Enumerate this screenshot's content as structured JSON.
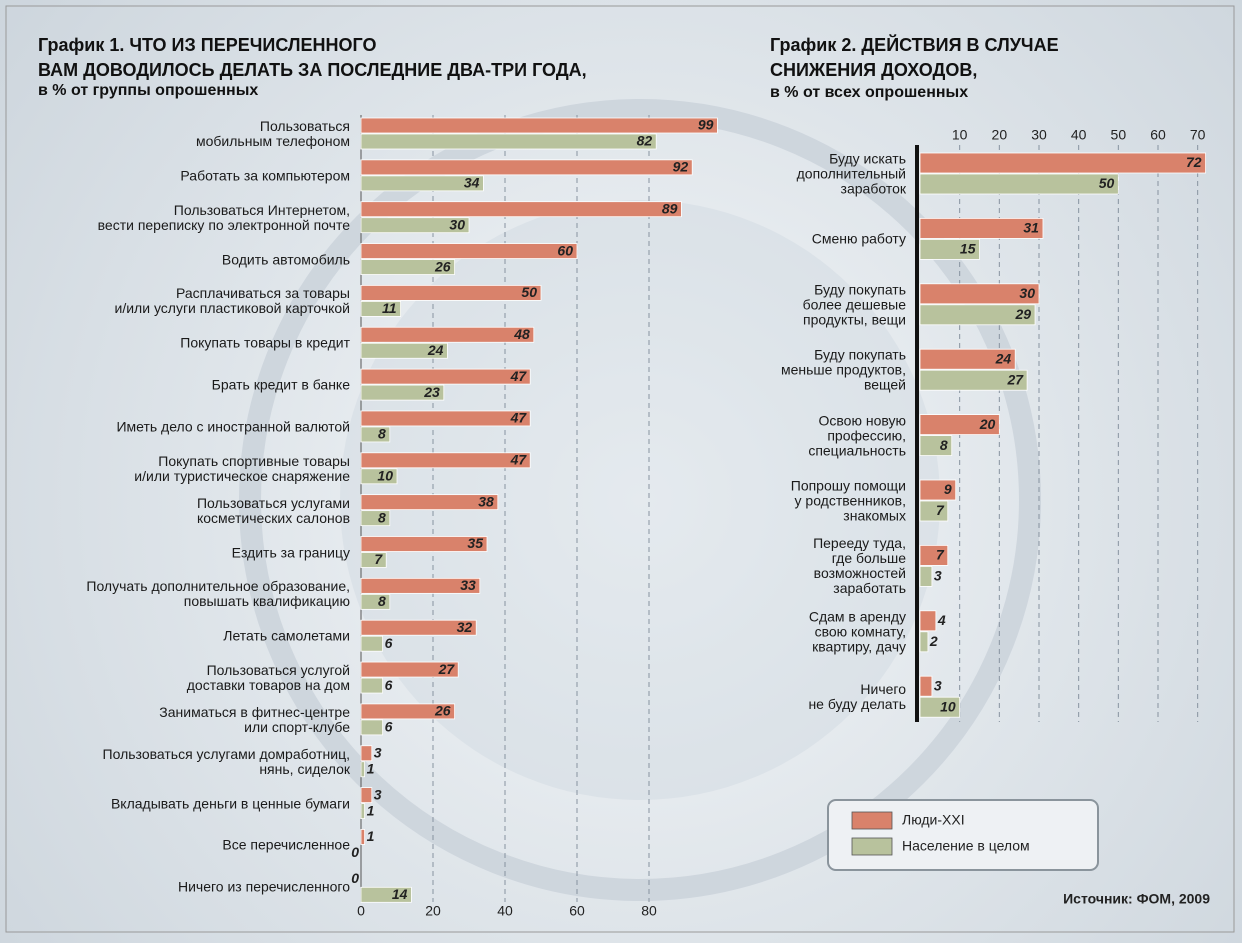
{
  "chart_data": [
    {
      "type": "bar",
      "orientation": "horizontal",
      "title": "График 1. ЧТО ИЗ ПЕРЕЧИСЛЕННОГО\nВАМ ДОВОДИЛОСЬ ДЕЛАТЬ ЗА ПОСЛЕДНИЕ ДВА-ТРИ ГОДА,",
      "subtitle": "в % от группы опрошенных",
      "categories": [
        "Пользоваться\nмобильным телефоном",
        "Работать за компьютером",
        "Пользоваться Интернетом,\nвести переписку по электронной почте",
        "Водить автомобиль",
        "Расплачиваться за товары\nи/или услуги пластиковой карточкой",
        "Покупать товары в кредит",
        "Брать кредит в банке",
        "Иметь дело с иностранной валютой",
        "Покупать спортивные товары\nи/или туристическое снаряжение",
        "Пользоваться услугами\nкосметических салонов",
        "Ездить за границу",
        "Получать дополнительное образование,\nповышать квалификацию",
        "Летать самолетами",
        "Пользоваться услугой\nдоставки товаров на дом",
        "Заниматься в фитнес-центре\nили спорт-клубе",
        "Пользоваться услугами домработниц,\nнянь, сиделок",
        "Вкладывать деньги в ценные бумаги",
        "Все перечисленное",
        "Ничего из перечисленного"
      ],
      "series": [
        {
          "name": "Люди-XXI",
          "color": "#d9826b",
          "values": [
            99,
            92,
            89,
            60,
            50,
            48,
            47,
            47,
            47,
            38,
            35,
            33,
            32,
            27,
            26,
            3,
            3,
            1,
            0
          ]
        },
        {
          "name": "Население в целом",
          "color": "#b8c29d",
          "values": [
            82,
            34,
            30,
            26,
            11,
            24,
            23,
            8,
            10,
            8,
            7,
            8,
            6,
            6,
            6,
            1,
            1,
            0,
            14
          ]
        }
      ],
      "xlim": [
        0,
        100
      ],
      "xticks": [
        0,
        20,
        40,
        60,
        80
      ],
      "grid": true
    },
    {
      "type": "bar",
      "orientation": "horizontal",
      "title": "График 2. ДЕЙСТВИЯ В СЛУЧАЕ\nСНИЖЕНИЯ ДОХОДОВ,",
      "subtitle": "в % от всех опрошенных",
      "categories": [
        "Буду искать\nдополнительный\nзаработок",
        "Сменю работу",
        "Буду покупать\nболее дешевые\nпродукты, вещи",
        "Буду покупать\nменьше продуктов,\nвещей",
        "Освою новую\nпрофессию,\nспециальность",
        "Попрошу помощи\nу родственников,\nзнакомых",
        "Перееду туда,\nгде больше\nвозможностей\nзаработать",
        "Сдам в аренду\nсвою комнату,\nквартиру, дачу",
        "Ничего\nне буду делать"
      ],
      "series": [
        {
          "name": "Люди-XXI",
          "color": "#d9826b",
          "values": [
            72,
            31,
            30,
            24,
            20,
            9,
            7,
            4,
            3
          ]
        },
        {
          "name": "Население в целом",
          "color": "#b8c29d",
          "values": [
            50,
            15,
            29,
            27,
            8,
            7,
            3,
            2,
            10
          ]
        }
      ],
      "xlim": [
        0,
        75
      ],
      "xticks": [
        10,
        20,
        30,
        40,
        50,
        60,
        70
      ],
      "grid": true,
      "legend": "bottom-right",
      "source": "Источник: ФОМ, 2009"
    }
  ]
}
